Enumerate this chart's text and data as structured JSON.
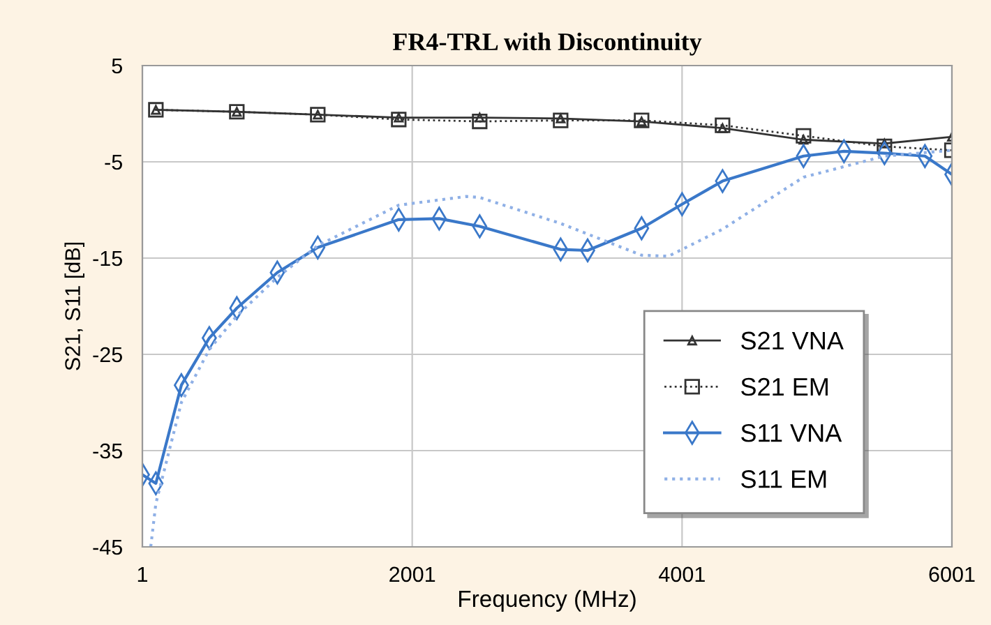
{
  "chart_data": {
    "type": "line",
    "title": "FR4-TRL with Discontinuity",
    "xlabel": "Frequency (MHz)",
    "ylabel": "S21, S11 [dB]",
    "xlim": [
      1,
      6001
    ],
    "xticks": [
      1,
      2001,
      4001,
      6001
    ],
    "ylim": [
      -45,
      5
    ],
    "yticks": [
      5,
      -5,
      -15,
      -25,
      -35,
      -45
    ],
    "grid": true,
    "legend": "bottom right",
    "series": [
      {
        "name": "S21 VNA",
        "color": "#333333",
        "marker": "triangle",
        "line_style": "solid",
        "x": [
          101,
          701,
          1301,
          1901,
          2501,
          3101,
          3701,
          4301,
          4901,
          5501,
          6001
        ],
        "values": [
          0.4,
          0.2,
          -0.1,
          -0.4,
          -0.4,
          -0.5,
          -0.8,
          -1.5,
          -2.7,
          -3.1,
          -2.4
        ]
      },
      {
        "name": "S21 EM",
        "color": "#333333",
        "marker": "square",
        "line_style": "dotted",
        "x": [
          101,
          701,
          1301,
          1901,
          2501,
          3101,
          3701,
          4301,
          4901,
          5501,
          6001
        ],
        "values": [
          0.4,
          0.2,
          -0.1,
          -0.6,
          -0.8,
          -0.7,
          -0.7,
          -1.2,
          -2.3,
          -3.4,
          -3.8
        ]
      },
      {
        "name": "S11 VNA",
        "color": "#3a78c9",
        "marker": "diamond",
        "line_style": "solid",
        "x": [
          1,
          101,
          290,
          497,
          701,
          1001,
          1301,
          1901,
          2201,
          2501,
          3101,
          3301,
          3701,
          4001,
          4301,
          4901,
          5201,
          5501,
          5801,
          6001
        ],
        "values": [
          -37.5,
          -38.4,
          -28.2,
          -23.3,
          -20.2,
          -16.5,
          -13.9,
          -11.0,
          -10.9,
          -11.7,
          -14.1,
          -14.2,
          -11.9,
          -9.4,
          -7.0,
          -4.4,
          -3.9,
          -4.1,
          -4.4,
          -6.3
        ]
      },
      {
        "name": "S11 EM",
        "color": "#8fb0e6",
        "marker": "none",
        "line_style": "dotted",
        "x": [
          63,
          101,
          290,
          497,
          701,
          1001,
          1301,
          1901,
          2401,
          2501,
          3101,
          3701,
          3901,
          4301,
          4901,
          5501,
          6001
        ],
        "values": [
          -45,
          -40.5,
          -30,
          -24.5,
          -21,
          -17,
          -13.7,
          -9.5,
          -8.6,
          -8.7,
          -11.4,
          -14.7,
          -14.8,
          -12.0,
          -6.6,
          -4.4,
          -3.8
        ]
      }
    ]
  }
}
